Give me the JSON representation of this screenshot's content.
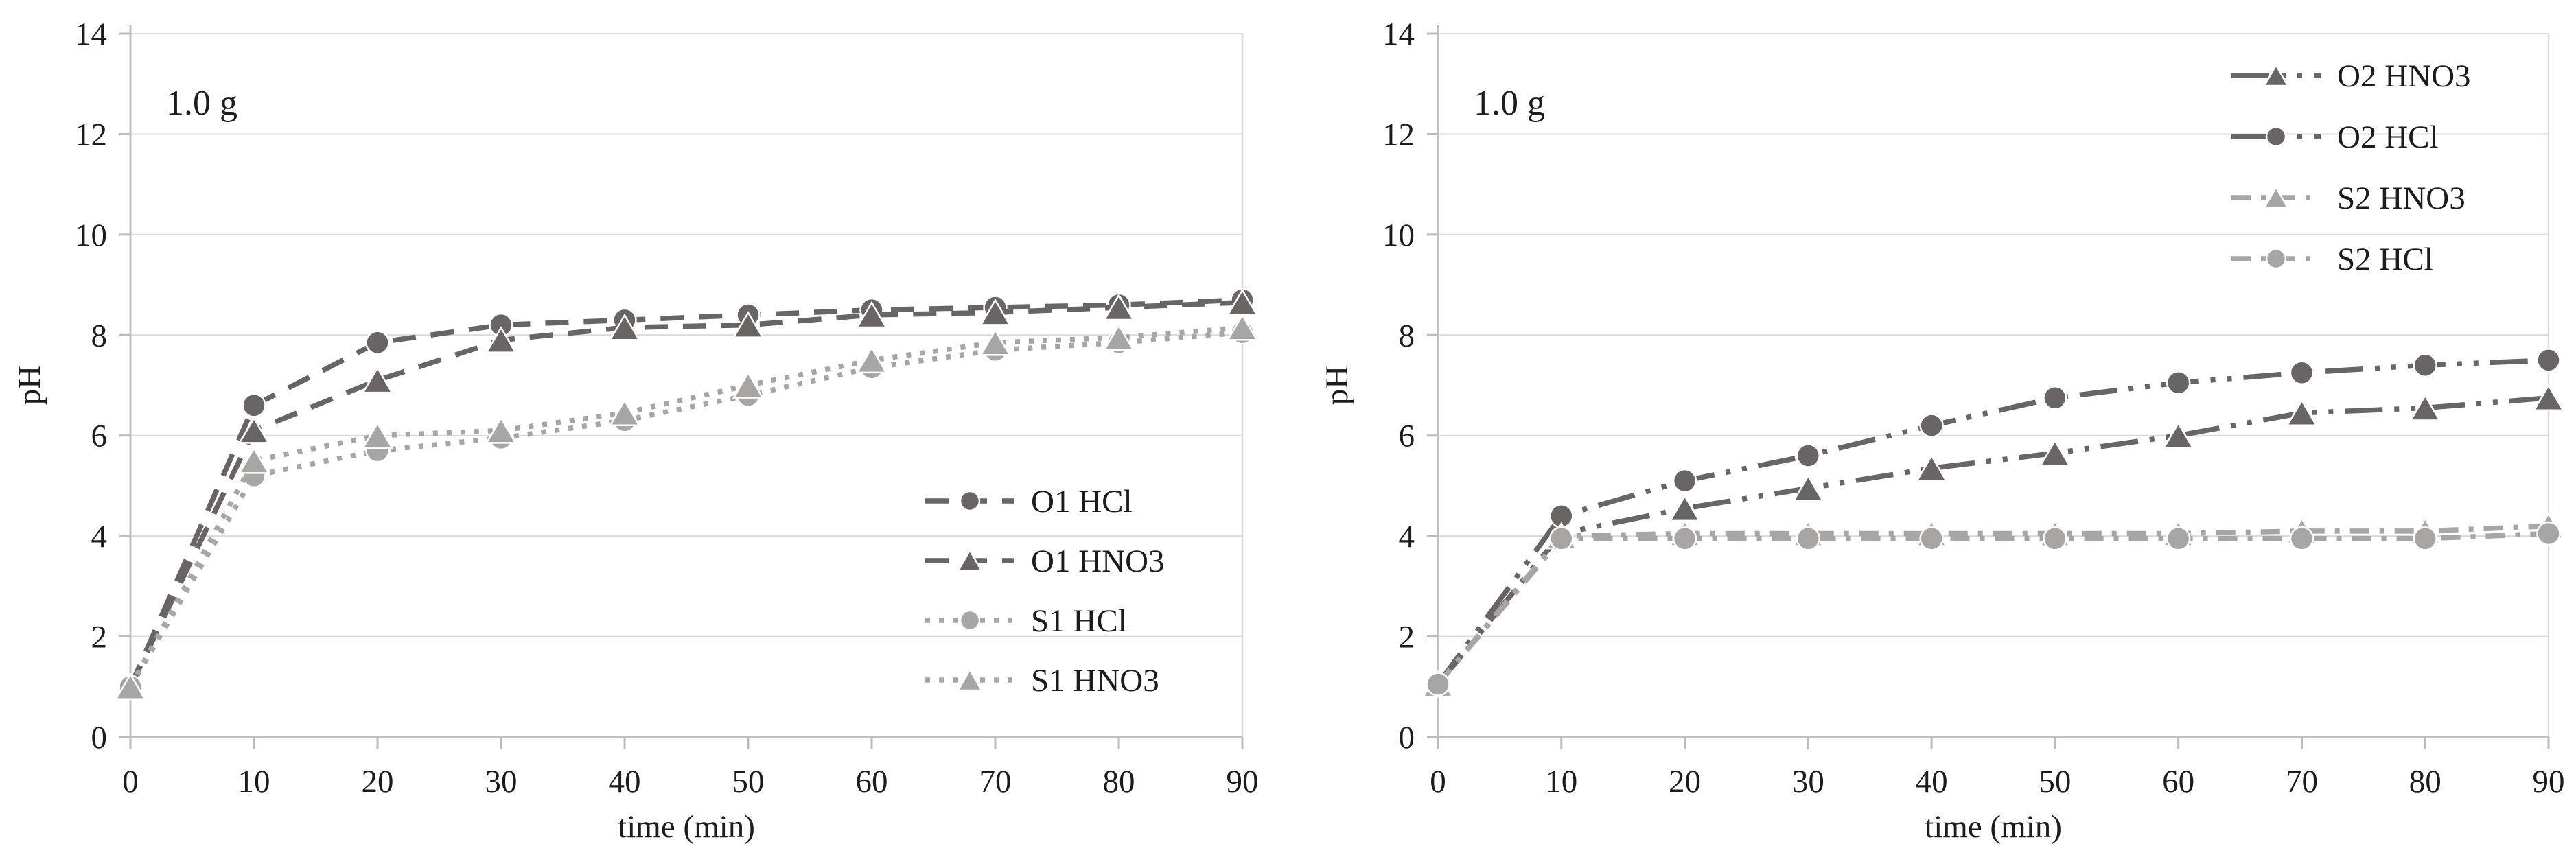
{
  "figure": {
    "description": "Two line charts of pH versus time for 1.0 g sorbent samples in HCl and HNO3 acid solutions",
    "colors": {
      "dark_series": "#696565",
      "light_series": "#a8a5a5",
      "gridline": "#d9d9d9",
      "axis_line": "#c2bfbf",
      "tick": "#bdbaba",
      "text": "#1c1c1c",
      "background": "#ffffff",
      "marker_outline": "#ffffff"
    }
  },
  "chart_data": [
    {
      "type": "line",
      "annotation": "1.0 g",
      "xlabel": "time (min)",
      "ylabel": "pH",
      "x": [
        0,
        10,
        20,
        30,
        40,
        50,
        60,
        70,
        80,
        90
      ],
      "xticks": [
        0,
        10,
        20,
        30,
        40,
        50,
        60,
        70,
        80,
        90
      ],
      "yticks": [
        0,
        2,
        4,
        6,
        8,
        10,
        12,
        14
      ],
      "xlim": [
        0,
        90
      ],
      "ylim": [
        0,
        14
      ],
      "grid": "horizontal",
      "legend_position": "lower-right",
      "series": [
        {
          "name": "O1 HCl",
          "marker": "circle",
          "line_style": "dashed",
          "color": "#696565",
          "values": [
            1.0,
            6.6,
            7.85,
            8.2,
            8.3,
            8.4,
            8.5,
            8.55,
            8.6,
            8.7
          ]
        },
        {
          "name": "O1 HNO3",
          "marker": "triangle",
          "line_style": "dashed",
          "color": "#696565",
          "values": [
            1.0,
            6.1,
            7.1,
            7.9,
            8.15,
            8.2,
            8.4,
            8.45,
            8.55,
            8.65
          ]
        },
        {
          "name": "S1 HCl",
          "marker": "circle",
          "line_style": "dotted",
          "color": "#a8a5a5",
          "values": [
            1.0,
            5.2,
            5.7,
            5.95,
            6.3,
            6.8,
            7.35,
            7.7,
            7.85,
            8.05
          ]
        },
        {
          "name": "S1 HNO3",
          "marker": "triangle",
          "line_style": "dotted",
          "color": "#a8a5a5",
          "values": [
            1.0,
            5.5,
            6.0,
            6.1,
            6.45,
            7.0,
            7.5,
            7.85,
            7.95,
            8.15
          ]
        }
      ]
    },
    {
      "type": "line",
      "annotation": "1.0 g",
      "xlabel": "time (min)",
      "ylabel": "pH",
      "x": [
        0,
        10,
        20,
        30,
        40,
        50,
        60,
        70,
        80,
        90
      ],
      "xticks": [
        0,
        10,
        20,
        30,
        40,
        50,
        60,
        70,
        80,
        90
      ],
      "yticks": [
        0,
        2,
        4,
        6,
        8,
        10,
        12,
        14
      ],
      "xlim": [
        0,
        90
      ],
      "ylim": [
        0,
        14
      ],
      "grid": "horizontal",
      "legend_position": "upper-right",
      "series": [
        {
          "name": "O2 HNO3",
          "marker": "triangle",
          "line_style": "dash-dot-dot",
          "color": "#696565",
          "values": [
            1.05,
            4.05,
            4.55,
            4.95,
            5.35,
            5.65,
            6.0,
            6.45,
            6.55,
            6.75
          ]
        },
        {
          "name": "O2 HCl",
          "marker": "circle",
          "line_style": "dash-dot-dot",
          "color": "#696565",
          "values": [
            1.05,
            4.4,
            5.1,
            5.6,
            6.2,
            6.75,
            7.05,
            7.25,
            7.4,
            7.5
          ]
        },
        {
          "name": "S2 HNO3",
          "marker": "triangle",
          "line_style": "dash-dot",
          "color": "#a8a5a5",
          "values": [
            1.05,
            4.0,
            4.05,
            4.05,
            4.05,
            4.05,
            4.05,
            4.1,
            4.1,
            4.2
          ]
        },
        {
          "name": "S2 HCl",
          "marker": "circle",
          "line_style": "dash-dot",
          "color": "#a8a5a5",
          "values": [
            1.05,
            3.95,
            3.95,
            3.95,
            3.95,
            3.95,
            3.95,
            3.95,
            3.95,
            4.05
          ]
        }
      ]
    }
  ]
}
